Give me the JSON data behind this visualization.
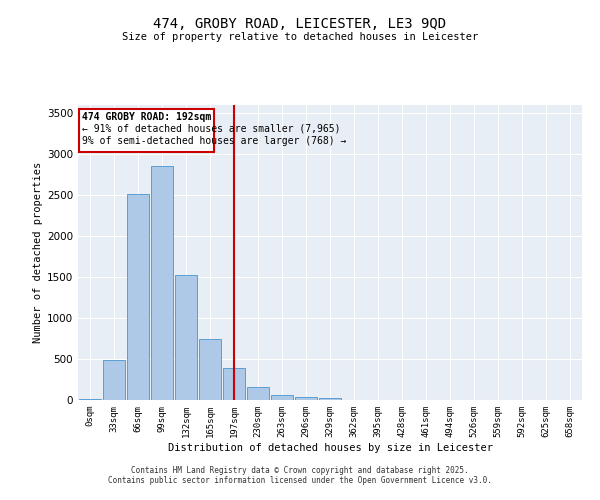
{
  "title_line1": "474, GROBY ROAD, LEICESTER, LE3 9QD",
  "title_line2": "Size of property relative to detached houses in Leicester",
  "xlabel": "Distribution of detached houses by size in Leicester",
  "ylabel": "Number of detached properties",
  "footnote1": "Contains HM Land Registry data © Crown copyright and database right 2025.",
  "footnote2": "Contains public sector information licensed under the Open Government Licence v3.0.",
  "annotation_line1": "474 GROBY ROAD: 192sqm",
  "annotation_line2": "← 91% of detached houses are smaller (7,965)",
  "annotation_line3": "9% of semi-detached houses are larger (768) →",
  "bar_labels": [
    "0sqm",
    "33sqm",
    "66sqm",
    "99sqm",
    "132sqm",
    "165sqm",
    "197sqm",
    "230sqm",
    "263sqm",
    "296sqm",
    "329sqm",
    "362sqm",
    "395sqm",
    "428sqm",
    "461sqm",
    "494sqm",
    "526sqm",
    "559sqm",
    "592sqm",
    "625sqm",
    "658sqm"
  ],
  "bar_values": [
    15,
    490,
    2520,
    2850,
    1530,
    750,
    390,
    155,
    65,
    40,
    30,
    5,
    0,
    0,
    0,
    0,
    0,
    0,
    0,
    0,
    0
  ],
  "bar_color": "#aec8e8",
  "bar_edge_color": "#5a9fd4",
  "vline_x": 6,
  "vline_color": "#cc0000",
  "ylim": [
    0,
    3600
  ],
  "yticks": [
    0,
    500,
    1000,
    1500,
    2000,
    2500,
    3000,
    3500
  ],
  "background_color": "#e8eef5",
  "grid_color": "#ffffff",
  "annotation_box_color": "#ffffff",
  "annotation_box_edge_color": "#cc0000"
}
